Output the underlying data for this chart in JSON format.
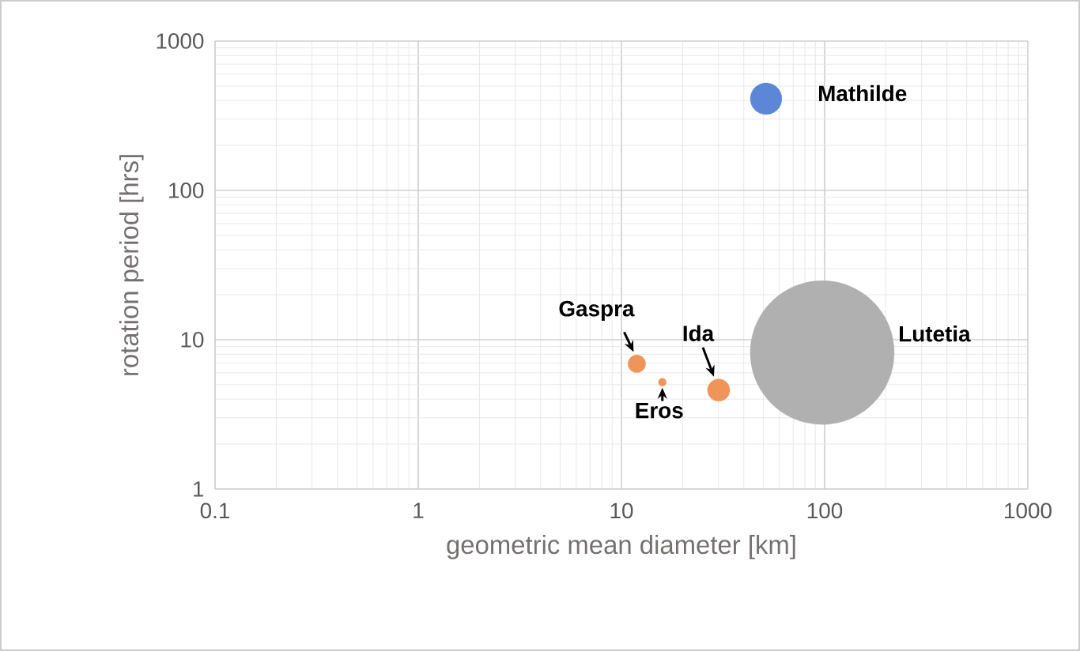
{
  "chart_data": {
    "type": "bubble",
    "xlabel": "geometric mean diameter [km]",
    "ylabel": "rotation period [hrs]",
    "log": "xy",
    "grid": true,
    "xlim": [
      0.1,
      1000
    ],
    "xticks": [
      0.1,
      1,
      10,
      100,
      1000
    ],
    "ylim": [
      1,
      1000
    ],
    "yticks": [
      1,
      10,
      100,
      1000
    ],
    "series": [
      {
        "name": "Mathilde",
        "color": "#5b87d6",
        "x": [
          51.5
        ],
        "values": [
          411
        ],
        "sizes": [
          0.048
        ]
      },
      {
        "name": "Gaspra",
        "color": "#f0955a",
        "x": [
          11.9
        ],
        "values": [
          6.9
        ],
        "sizes": [
          0.015
        ]
      },
      {
        "name": "Eros",
        "color": "#f0955a",
        "x": [
          15.9
        ],
        "values": [
          5.2
        ],
        "sizes": [
          0.003
        ]
      },
      {
        "name": "Ida",
        "color": "#f0955a",
        "x": [
          30.1
        ],
        "values": [
          4.6
        ],
        "sizes": [
          0.024
        ]
      },
      {
        "name": "Lutetia",
        "color": "#b0b0b0",
        "x": [
          97.3
        ],
        "values": [
          8.2
        ],
        "sizes": [
          1
        ]
      }
    ]
  }
}
